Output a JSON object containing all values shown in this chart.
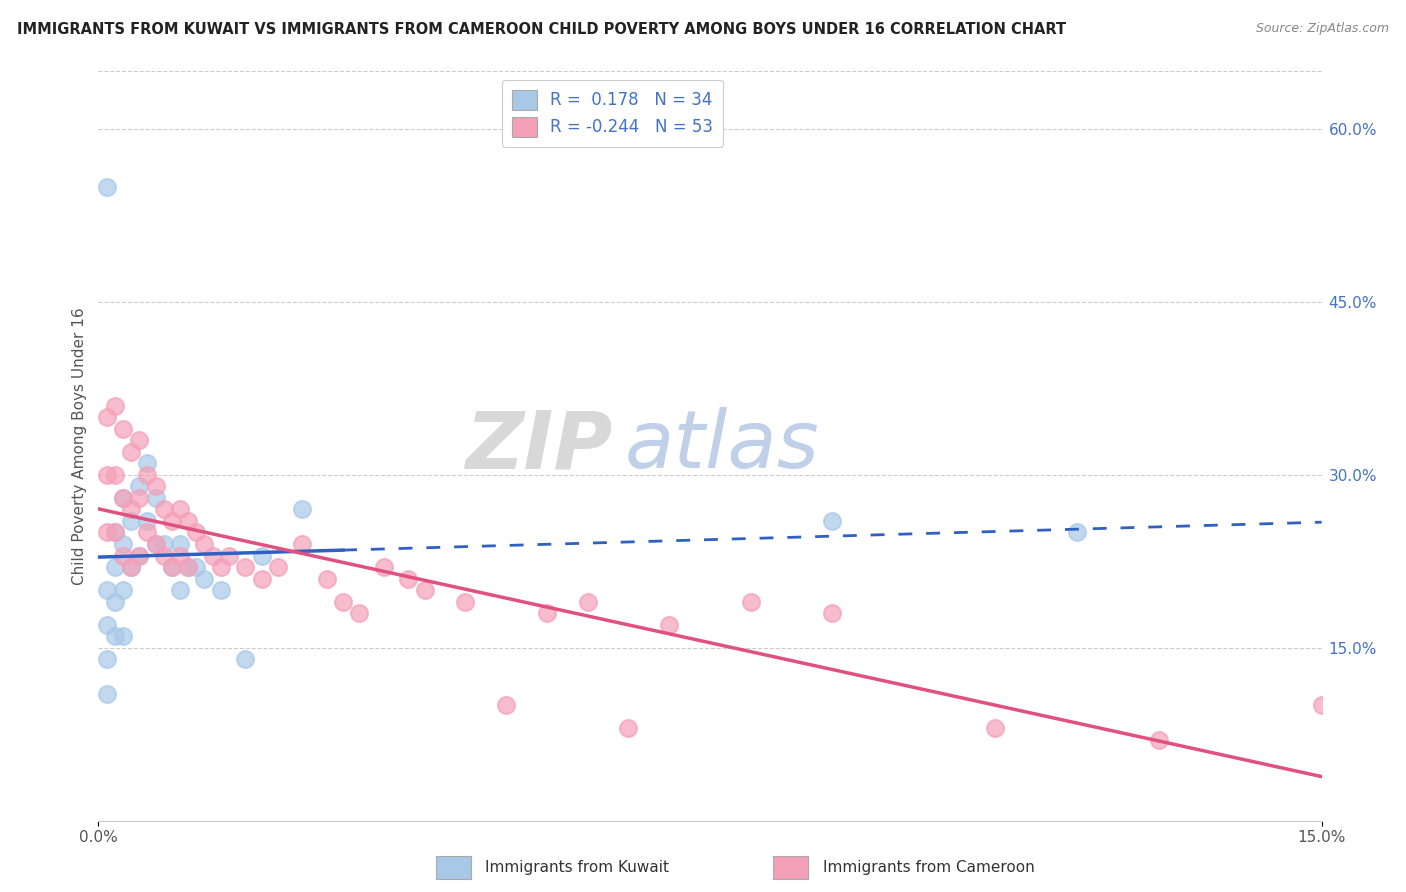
{
  "title": "IMMIGRANTS FROM KUWAIT VS IMMIGRANTS FROM CAMEROON CHILD POVERTY AMONG BOYS UNDER 16 CORRELATION CHART",
  "source": "Source: ZipAtlas.com",
  "ylabel": "Child Poverty Among Boys Under 16",
  "xlim": [
    0.0,
    0.15
  ],
  "ylim": [
    0.0,
    0.65
  ],
  "ytick_right_labels": [
    "60.0%",
    "45.0%",
    "30.0%",
    "15.0%"
  ],
  "ytick_right_values": [
    0.6,
    0.45,
    0.3,
    0.15
  ],
  "kuwait_color": "#a8c8e8",
  "cameroon_color": "#f4a0b8",
  "kuwait_line_color": "#3060c0",
  "cameroon_line_color": "#e05080",
  "kuwait_R": 0.178,
  "kuwait_N": 34,
  "cameroon_R": -0.244,
  "cameroon_N": 53,
  "legend_label_kuwait": "Immigrants from Kuwait",
  "legend_label_cameroon": "Immigrants from Cameroon",
  "kuwait_x": [
    0.001,
    0.001,
    0.001,
    0.001,
    0.001,
    0.002,
    0.002,
    0.002,
    0.002,
    0.003,
    0.003,
    0.003,
    0.003,
    0.004,
    0.004,
    0.005,
    0.005,
    0.006,
    0.006,
    0.007,
    0.007,
    0.008,
    0.009,
    0.01,
    0.01,
    0.011,
    0.012,
    0.013,
    0.015,
    0.018,
    0.02,
    0.025,
    0.09,
    0.12
  ],
  "kuwait_y": [
    0.55,
    0.2,
    0.17,
    0.14,
    0.11,
    0.25,
    0.22,
    0.19,
    0.16,
    0.28,
    0.24,
    0.2,
    0.16,
    0.26,
    0.22,
    0.29,
    0.23,
    0.31,
    0.26,
    0.28,
    0.24,
    0.24,
    0.22,
    0.24,
    0.2,
    0.22,
    0.22,
    0.21,
    0.2,
    0.14,
    0.23,
    0.27,
    0.26,
    0.25
  ],
  "cameroon_x": [
    0.001,
    0.001,
    0.001,
    0.002,
    0.002,
    0.002,
    0.003,
    0.003,
    0.003,
    0.004,
    0.004,
    0.004,
    0.005,
    0.005,
    0.005,
    0.006,
    0.006,
    0.007,
    0.007,
    0.008,
    0.008,
    0.009,
    0.009,
    0.01,
    0.01,
    0.011,
    0.011,
    0.012,
    0.013,
    0.014,
    0.015,
    0.016,
    0.018,
    0.02,
    0.022,
    0.025,
    0.028,
    0.03,
    0.032,
    0.035,
    0.038,
    0.04,
    0.045,
    0.05,
    0.055,
    0.06,
    0.065,
    0.07,
    0.08,
    0.09,
    0.11,
    0.13,
    0.15
  ],
  "cameroon_y": [
    0.35,
    0.3,
    0.25,
    0.36,
    0.3,
    0.25,
    0.34,
    0.28,
    0.23,
    0.32,
    0.27,
    0.22,
    0.33,
    0.28,
    0.23,
    0.3,
    0.25,
    0.29,
    0.24,
    0.27,
    0.23,
    0.26,
    0.22,
    0.27,
    0.23,
    0.26,
    0.22,
    0.25,
    0.24,
    0.23,
    0.22,
    0.23,
    0.22,
    0.21,
    0.22,
    0.24,
    0.21,
    0.19,
    0.18,
    0.22,
    0.21,
    0.2,
    0.19,
    0.1,
    0.18,
    0.19,
    0.08,
    0.17,
    0.19,
    0.18,
    0.08,
    0.07,
    0.1
  ]
}
